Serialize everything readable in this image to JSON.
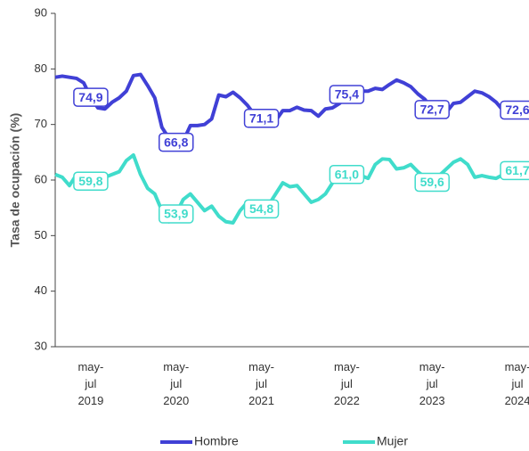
{
  "chart_data": {
    "type": "line",
    "y_label": "Tasa de ocupación (%)",
    "categories": [
      null,
      null,
      null,
      null,
      null,
      "may-\njul\n2019",
      null,
      null,
      null,
      null,
      null,
      null,
      null,
      null,
      null,
      null,
      null,
      "may-\njul\n2020",
      null,
      null,
      null,
      null,
      null,
      null,
      null,
      null,
      null,
      null,
      null,
      "may-\njul\n2021",
      null,
      null,
      null,
      null,
      null,
      null,
      null,
      null,
      null,
      null,
      null,
      "may-\njul\n2022",
      null,
      null,
      null,
      null,
      null,
      null,
      null,
      null,
      null,
      null,
      null,
      "may-\njul\n2023",
      null,
      null,
      null,
      null,
      null,
      null,
      null,
      null,
      null,
      null,
      null,
      "may-\njul\n2024",
      null,
      null
    ],
    "series": [
      {
        "name": "Hombre",
        "color": "#4040d6",
        "values": [
          78.5,
          78.7,
          78.5,
          78.3,
          77.5,
          74.9,
          73,
          72.8,
          74,
          74.8,
          76,
          78.8,
          79,
          77,
          74.8,
          69.5,
          67.5,
          66.8,
          67,
          69.8,
          69.8,
          70,
          71,
          75.3,
          75,
          75.8,
          74.8,
          73.5,
          71.8,
          71.1,
          71,
          70.7,
          72.5,
          72.5,
          73.1,
          72.6,
          72.5,
          71.5,
          72.8,
          73,
          73.8,
          75.4,
          75.4,
          76,
          76,
          76.5,
          76.3,
          77.2,
          78,
          77.5,
          76.8,
          75.5,
          74.5,
          72.7,
          72.6,
          72.2,
          73.8,
          74,
          75,
          76,
          75.7,
          75,
          74,
          72.5,
          73.2,
          72.6,
          72.2,
          72.6
        ],
        "value_labels": [
          null,
          null,
          null,
          null,
          null,
          "74,9",
          null,
          null,
          null,
          null,
          null,
          null,
          null,
          null,
          null,
          null,
          null,
          "66,8",
          null,
          null,
          null,
          null,
          null,
          null,
          null,
          null,
          null,
          null,
          null,
          "71,1",
          null,
          null,
          null,
          null,
          null,
          null,
          null,
          null,
          null,
          null,
          null,
          "75,4",
          null,
          null,
          null,
          null,
          null,
          null,
          null,
          null,
          null,
          null,
          null,
          "72,7",
          null,
          null,
          null,
          null,
          null,
          null,
          null,
          null,
          null,
          null,
          null,
          "72,6",
          null,
          null
        ]
      },
      {
        "name": "Mujer",
        "color": "#40dccb",
        "values": [
          61,
          60.5,
          59,
          61,
          60.5,
          59.8,
          60,
          60.5,
          61,
          61.5,
          63.5,
          64.5,
          61,
          58.5,
          57.5,
          54.5,
          52.5,
          53.9,
          56.5,
          57.5,
          56,
          54.5,
          55.3,
          53.5,
          52.5,
          52.3,
          54.5,
          56,
          54.8,
          54.8,
          55.5,
          57.5,
          59.5,
          58.8,
          59,
          57.5,
          56,
          56.5,
          57.5,
          59.5,
          60.3,
          61,
          61,
          60.8,
          60.3,
          62.8,
          63.8,
          63.7,
          62,
          62.2,
          62.8,
          61.5,
          60.5,
          59.6,
          60.8,
          62,
          63.2,
          63.8,
          62.8,
          60.5,
          60.8,
          60.5,
          60.3,
          61,
          60.5,
          61.7,
          61,
          61.7
        ],
        "value_labels": [
          null,
          null,
          null,
          null,
          null,
          "59,8",
          null,
          null,
          null,
          null,
          null,
          null,
          null,
          null,
          null,
          null,
          null,
          "53,9",
          null,
          null,
          null,
          null,
          null,
          null,
          null,
          null,
          null,
          null,
          null,
          "54,8",
          null,
          null,
          null,
          null,
          null,
          null,
          null,
          null,
          null,
          null,
          null,
          "61,0",
          null,
          null,
          null,
          null,
          null,
          null,
          null,
          null,
          null,
          null,
          null,
          "59,6",
          null,
          null,
          null,
          null,
          null,
          null,
          null,
          null,
          null,
          null,
          null,
          "61,7",
          null,
          null
        ]
      }
    ],
    "ylim": [
      30,
      90
    ],
    "yticks": [
      30,
      40,
      50,
      60,
      70,
      80,
      90
    ],
    "grid": false,
    "legend": "bottom"
  }
}
